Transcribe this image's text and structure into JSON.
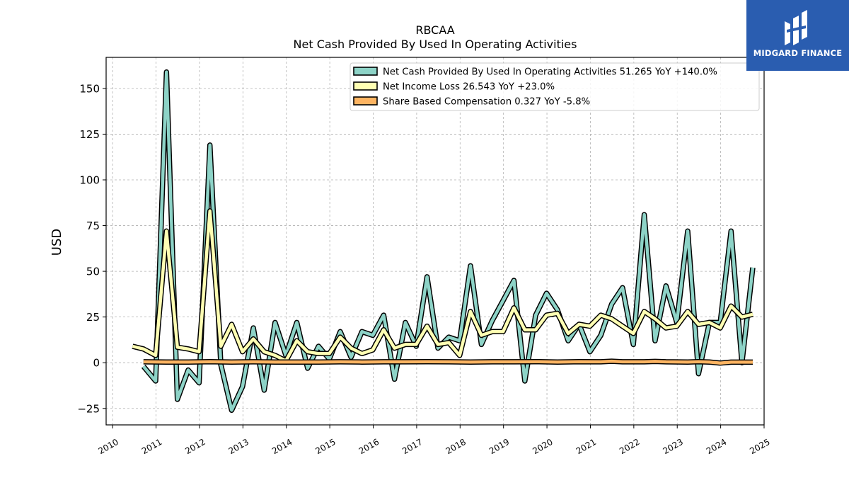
{
  "chart_data": {
    "type": "line",
    "title": "RBCAA",
    "subtitle": "Net Cash Provided By Used In Operating Activities",
    "ylabel": "USD",
    "xlabel": "",
    "ylim": [
      -34,
      167
    ],
    "xlim": [
      2009.85,
      2025.0
    ],
    "grid": true,
    "legend_position": "top-right",
    "yticks": [
      -25,
      0,
      25,
      50,
      75,
      100,
      125,
      150
    ],
    "ytick_labels": [
      "−25",
      "0",
      "25",
      "50",
      "75",
      "100",
      "125",
      "150"
    ],
    "xticks": [
      2010,
      2011,
      2012,
      2013,
      2014,
      2015,
      2016,
      2017,
      2018,
      2019,
      2020,
      2021,
      2022,
      2023,
      2024,
      2025
    ],
    "xtick_labels": [
      "2010",
      "2011",
      "2012",
      "2013",
      "2014",
      "2015",
      "2016",
      "2017",
      "2018",
      "2019",
      "2020",
      "2021",
      "2022",
      "2023",
      "2024",
      "2025"
    ],
    "series": [
      {
        "name": "Net Cash Provided By Used In Operating Activities",
        "legend_label": "Net Cash Provided By Used In Operating Activities  51.265 YoY +140.0%",
        "color": "#8dd3c7",
        "points": [
          [
            2010.71,
            -2
          ],
          [
            2010.99,
            -10
          ],
          [
            2011.24,
            159
          ],
          [
            2011.49,
            -20
          ],
          [
            2011.74,
            -4
          ],
          [
            2011.99,
            -11
          ],
          [
            2012.24,
            119
          ],
          [
            2012.49,
            -1
          ],
          [
            2012.74,
            -26
          ],
          [
            2012.99,
            -13
          ],
          [
            2013.24,
            19
          ],
          [
            2013.49,
            -15
          ],
          [
            2013.74,
            22
          ],
          [
            2013.99,
            4
          ],
          [
            2014.24,
            22
          ],
          [
            2014.49,
            -3
          ],
          [
            2014.74,
            9
          ],
          [
            2014.99,
            2
          ],
          [
            2015.24,
            17
          ],
          [
            2015.49,
            3
          ],
          [
            2015.74,
            17
          ],
          [
            2015.99,
            15
          ],
          [
            2016.24,
            26
          ],
          [
            2016.49,
            -9
          ],
          [
            2016.74,
            22
          ],
          [
            2016.99,
            9
          ],
          [
            2017.24,
            47
          ],
          [
            2017.49,
            8
          ],
          [
            2017.74,
            14
          ],
          [
            2017.99,
            12
          ],
          [
            2018.24,
            53
          ],
          [
            2018.49,
            10
          ],
          [
            2018.74,
            23
          ],
          [
            2018.99,
            34
          ],
          [
            2019.24,
            45
          ],
          [
            2019.49,
            -10
          ],
          [
            2019.74,
            26
          ],
          [
            2019.99,
            38
          ],
          [
            2020.24,
            29
          ],
          [
            2020.49,
            12
          ],
          [
            2020.74,
            21
          ],
          [
            2020.99,
            6
          ],
          [
            2021.24,
            15
          ],
          [
            2021.49,
            32
          ],
          [
            2021.74,
            41
          ],
          [
            2021.99,
            10
          ],
          [
            2022.24,
            81
          ],
          [
            2022.49,
            12
          ],
          [
            2022.74,
            42
          ],
          [
            2022.99,
            22
          ],
          [
            2023.24,
            72
          ],
          [
            2023.49,
            -6
          ],
          [
            2023.74,
            22
          ],
          [
            2023.99,
            22
          ],
          [
            2024.24,
            72
          ],
          [
            2024.49,
            0
          ],
          [
            2024.74,
            52
          ]
        ]
      },
      {
        "name": "Net Income Loss",
        "legend_label": "Net Income Loss  26.543 YoY +23.0%",
        "color": "#ffffb3",
        "points": [
          [
            2010.46,
            9
          ],
          [
            2010.71,
            7.5
          ],
          [
            2010.99,
            4
          ],
          [
            2011.24,
            72
          ],
          [
            2011.49,
            8.5
          ],
          [
            2011.74,
            7.5
          ],
          [
            2011.99,
            6
          ],
          [
            2012.24,
            83
          ],
          [
            2012.49,
            9
          ],
          [
            2012.74,
            21
          ],
          [
            2012.99,
            6
          ],
          [
            2013.24,
            13
          ],
          [
            2013.49,
            6
          ],
          [
            2013.74,
            4
          ],
          [
            2013.99,
            1
          ],
          [
            2014.24,
            12
          ],
          [
            2014.49,
            6
          ],
          [
            2014.74,
            5
          ],
          [
            2014.99,
            5
          ],
          [
            2015.24,
            14
          ],
          [
            2015.49,
            8
          ],
          [
            2015.74,
            5
          ],
          [
            2015.99,
            7
          ],
          [
            2016.24,
            18
          ],
          [
            2016.49,
            8
          ],
          [
            2016.74,
            10
          ],
          [
            2016.99,
            10
          ],
          [
            2017.24,
            20
          ],
          [
            2017.49,
            10
          ],
          [
            2017.74,
            11
          ],
          [
            2017.99,
            4
          ],
          [
            2018.24,
            28
          ],
          [
            2018.49,
            15
          ],
          [
            2018.74,
            17
          ],
          [
            2018.99,
            17
          ],
          [
            2019.24,
            30
          ],
          [
            2019.49,
            18
          ],
          [
            2019.74,
            18
          ],
          [
            2019.99,
            26
          ],
          [
            2020.24,
            27
          ],
          [
            2020.49,
            16
          ],
          [
            2020.74,
            21
          ],
          [
            2020.99,
            20
          ],
          [
            2021.24,
            26
          ],
          [
            2021.49,
            24
          ],
          [
            2021.74,
            20
          ],
          [
            2021.99,
            16
          ],
          [
            2022.24,
            28
          ],
          [
            2022.49,
            24
          ],
          [
            2022.74,
            19
          ],
          [
            2022.99,
            20
          ],
          [
            2023.24,
            28
          ],
          [
            2023.49,
            21
          ],
          [
            2023.74,
            22
          ],
          [
            2023.99,
            19
          ],
          [
            2024.24,
            31
          ],
          [
            2024.49,
            25
          ],
          [
            2024.74,
            26.5
          ]
        ]
      },
      {
        "name": "Share Based Compensation",
        "legend_label": "Share Based Compensation  0.327 YoY -5.8%",
        "color": "#fdb462",
        "points": [
          [
            2010.71,
            0.5
          ],
          [
            2011.24,
            0.4
          ],
          [
            2011.74,
            0.4
          ],
          [
            2012.24,
            0.6
          ],
          [
            2012.74,
            0.4
          ],
          [
            2013.24,
            0.5
          ],
          [
            2013.74,
            0.4
          ],
          [
            2014.24,
            0.4
          ],
          [
            2014.74,
            0.4
          ],
          [
            2015.24,
            0.5
          ],
          [
            2015.74,
            0.4
          ],
          [
            2016.24,
            0.5
          ],
          [
            2016.74,
            0.5
          ],
          [
            2017.24,
            0.6
          ],
          [
            2017.74,
            0.5
          ],
          [
            2018.24,
            0.4
          ],
          [
            2018.74,
            0.5
          ],
          [
            2019.24,
            0.5
          ],
          [
            2019.74,
            0.6
          ],
          [
            2020.24,
            0.4
          ],
          [
            2020.74,
            0.6
          ],
          [
            2021.24,
            0.5
          ],
          [
            2021.49,
            0.8
          ],
          [
            2021.74,
            0.5
          ],
          [
            2022.24,
            0.5
          ],
          [
            2022.49,
            0.7
          ],
          [
            2022.74,
            0.5
          ],
          [
            2023.24,
            0.4
          ],
          [
            2023.49,
            0.6
          ],
          [
            2023.74,
            0.4
          ],
          [
            2023.99,
            -0.2
          ],
          [
            2024.24,
            0.3
          ],
          [
            2024.74,
            0.33
          ]
        ]
      }
    ]
  },
  "logo": {
    "text": "MIDGARD FINANCE",
    "color": "#2a5db0"
  }
}
